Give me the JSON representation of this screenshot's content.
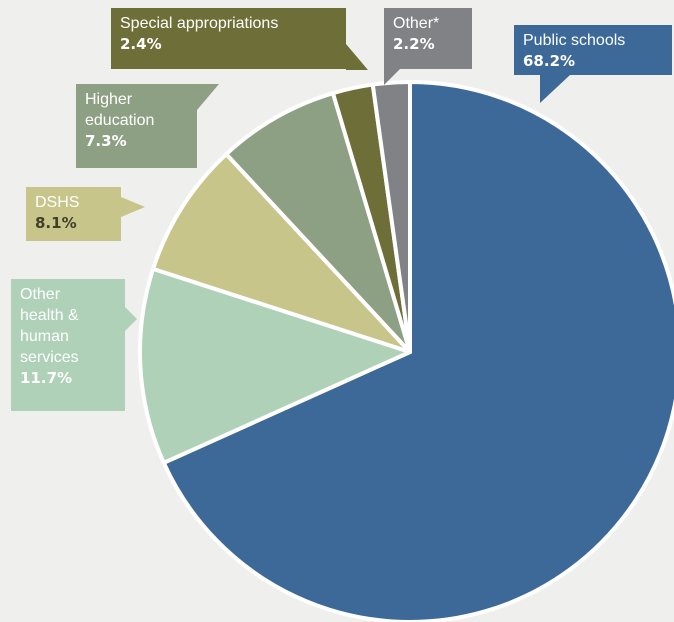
{
  "chart_data": {
    "type": "pie",
    "start_angle_deg": 0,
    "direction": "clockwise",
    "slices": [
      {
        "label": "Public schools",
        "value": 68.2,
        "pct_label": "68.2%",
        "color": "#3d6999"
      },
      {
        "label": "Other health & human services",
        "value": 11.7,
        "pct_label": "11.7%",
        "color": "#aed1b8"
      },
      {
        "label": "DSHS",
        "value": 8.1,
        "pct_label": "8.1%",
        "color": "#c7c58a"
      },
      {
        "label": "Higher education",
        "value": 7.3,
        "pct_label": "7.3%",
        "color": "#8ea084"
      },
      {
        "label": "Special appropriations",
        "value": 2.4,
        "pct_label": "2.4%",
        "color": "#6d6e38"
      },
      {
        "label": "Other*",
        "value": 2.2,
        "pct_label": "2.2%",
        "color": "#818286"
      }
    ]
  },
  "labels": {
    "public_schools": {
      "name": "Public schools",
      "pct": "68.2%"
    },
    "other_hhs": {
      "name": "Other\nhealth &\nhuman\nservices",
      "pct": "11.7%"
    },
    "dshs": {
      "name": "DSHS",
      "pct": "8.1%"
    },
    "higher_ed": {
      "name": "Higher\neducation",
      "pct": "7.3%"
    },
    "special_approp": {
      "name": "Special appropriations",
      "pct": "2.4%"
    },
    "other": {
      "name": "Other*",
      "pct": "2.2%"
    }
  },
  "colors": {
    "background": "#efefed",
    "slice_border": "#ffffff"
  }
}
